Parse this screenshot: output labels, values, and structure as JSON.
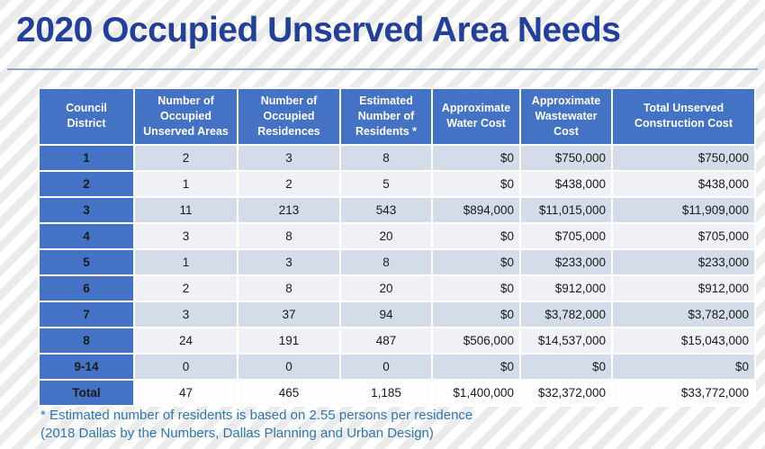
{
  "slide": {
    "title": "2020 Occupied Unserved Area Needs",
    "footnote_line1": "* Estimated number of residents is based on 2.55 persons per residence",
    "footnote_line2": "(2018 Dallas by the Numbers, Dallas Planning and Urban Design)"
  },
  "colors": {
    "title_text": "#21409A",
    "header_bg": "#4472C4",
    "district_col_bg": "#4472C4",
    "row_band_dark": "#D5DCE9",
    "row_band_light": "#EFF1F7",
    "footnote_text": "#2E75B6",
    "cell_border": "#FFFFFF"
  },
  "chart_data": {
    "type": "table",
    "title": "2020 Occupied Unserved Area Needs",
    "columns": [
      "Council District",
      "Number of Occupied Unserved Areas",
      "Number of Occupied Residences",
      "Estimated Number of Residents *",
      "Approximate Water Cost",
      "Approximate Wastewater Cost",
      "Total Unserved Construction Cost"
    ],
    "rows": [
      {
        "cells": [
          "1",
          "2",
          "3",
          "8",
          "$0",
          "$750,000",
          "$750,000"
        ],
        "is_total": false
      },
      {
        "cells": [
          "2",
          "1",
          "2",
          "5",
          "$0",
          "$438,000",
          "$438,000"
        ],
        "is_total": false
      },
      {
        "cells": [
          "3",
          "11",
          "213",
          "543",
          "$894,000",
          "$11,015,000",
          "$11,909,000"
        ],
        "is_total": false
      },
      {
        "cells": [
          "4",
          "3",
          "8",
          "20",
          "$0",
          "$705,000",
          "$705,000"
        ],
        "is_total": false
      },
      {
        "cells": [
          "5",
          "1",
          "3",
          "8",
          "$0",
          "$233,000",
          "$233,000"
        ],
        "is_total": false
      },
      {
        "cells": [
          "6",
          "2",
          "8",
          "20",
          "$0",
          "$912,000",
          "$912,000"
        ],
        "is_total": false
      },
      {
        "cells": [
          "7",
          "3",
          "37",
          "94",
          "$0",
          "$3,782,000",
          "$3,782,000"
        ],
        "is_total": false
      },
      {
        "cells": [
          "8",
          "24",
          "191",
          "487",
          "$506,000",
          "$14,537,000",
          "$15,043,000"
        ],
        "is_total": false
      },
      {
        "cells": [
          "9-14",
          "0",
          "0",
          "0",
          "$0",
          "$0",
          "$0"
        ],
        "is_total": false
      },
      {
        "cells": [
          "Total",
          "47",
          "465",
          "1,185",
          "$1,400,000",
          "$32,372,000",
          "$33,772,000"
        ],
        "is_total": true
      }
    ]
  }
}
